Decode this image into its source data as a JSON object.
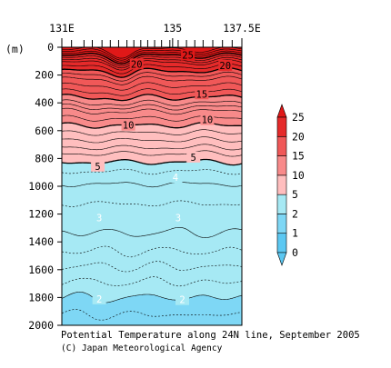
{
  "chart_data": {
    "type": "heatmap",
    "title": "Potential Temperature along 24N line, September 2005",
    "credit": "(C) Japan Meteorological Agency",
    "xlabel": "",
    "ylabel": "(m)",
    "xlim": [
      131,
      137.5
    ],
    "ylim": [
      2000,
      0
    ],
    "x_tick_labels": [
      {
        "x": 131,
        "label": "131E"
      },
      {
        "x": 135,
        "label": "135"
      },
      {
        "x": 137.5,
        "label": "137.5E"
      }
    ],
    "station_x": [
      131.35,
      131.8,
      132.1,
      132.45,
      132.75,
      133.05,
      133.35,
      133.6,
      133.85,
      134.1,
      134.35,
      134.6,
      134.9,
      135.2,
      135.5,
      135.8,
      136.1,
      136.45,
      136.8,
      137.15
    ],
    "y_ticks": [
      0,
      200,
      400,
      600,
      800,
      1000,
      1200,
      1400,
      1600,
      1800,
      2000
    ],
    "colorbar": {
      "levels": [
        0,
        1,
        2,
        5,
        10,
        15,
        20,
        25
      ],
      "colors": [
        "#5cc8f2",
        "#7ed7f5",
        "#a6e9f4",
        "#ffbebe",
        "#f88a8a",
        "#f05858",
        "#e52a2a"
      ],
      "under_color": "#5cc8f2",
      "over_color": "#e01818"
    },
    "contour_labels": [
      {
        "value": "25",
        "x": 135.55,
        "depth": 55
      },
      {
        "value": "20",
        "x": 133.7,
        "depth": 120
      },
      {
        "value": "20",
        "x": 136.9,
        "depth": 130
      },
      {
        "value": "15",
        "x": 136.05,
        "depth": 335
      },
      {
        "value": "10",
        "x": 133.4,
        "depth": 560
      },
      {
        "value": "10",
        "x": 136.25,
        "depth": 520
      },
      {
        "value": "5",
        "x": 132.3,
        "depth": 855
      },
      {
        "value": "5",
        "x": 135.75,
        "depth": 790
      },
      {
        "value": "4",
        "x": 135.1,
        "depth": 935
      },
      {
        "value": "3",
        "x": 132.35,
        "depth": 1225
      },
      {
        "value": "3",
        "x": 135.2,
        "depth": 1225
      },
      {
        "value": "2",
        "x": 132.35,
        "depth": 1810
      },
      {
        "value": "2",
        "x": 135.35,
        "depth": 1815
      }
    ]
  }
}
